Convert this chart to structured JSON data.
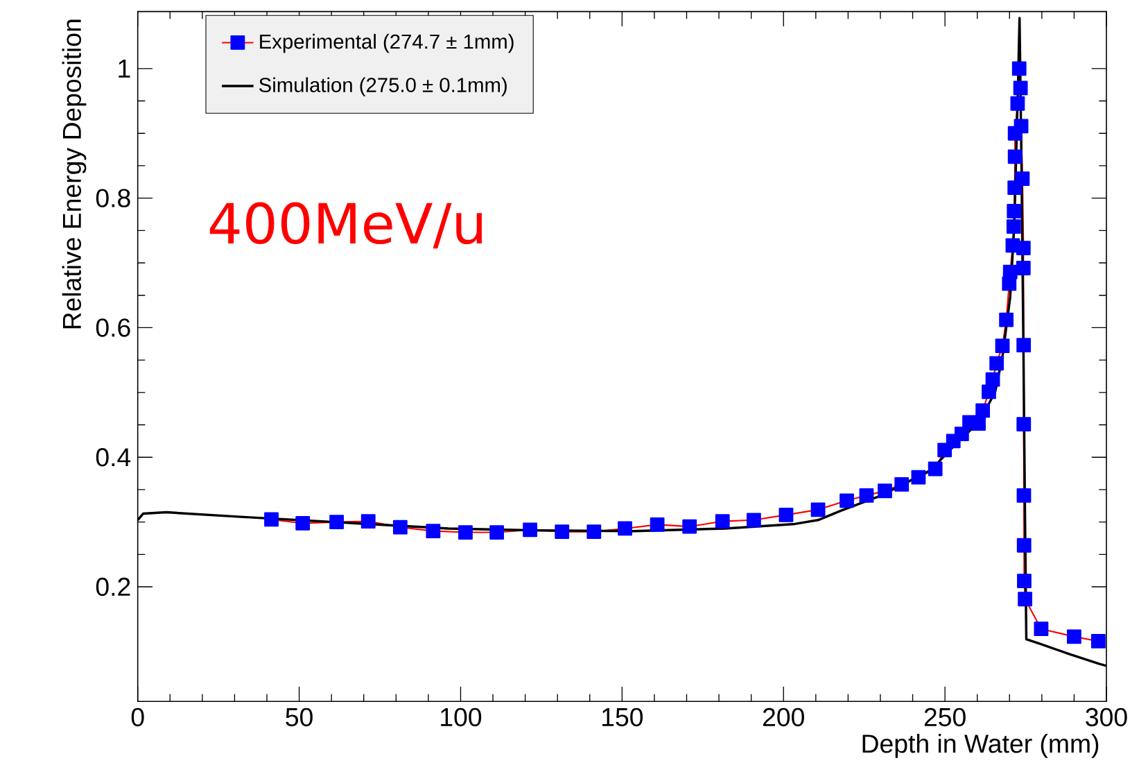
{
  "chart_data": {
    "type": "line",
    "xlabel": "Depth in Water (mm)",
    "ylabel": "Relative Energy Deposition",
    "annotations": [
      "400MeV/u"
    ],
    "xlim": [
      0,
      300
    ],
    "xticks": [
      0,
      50,
      100,
      150,
      200,
      250,
      300
    ],
    "ylim": [
      0.023,
      1.088
    ],
    "yticks": [
      0.2,
      0.4,
      0.6,
      0.8,
      1
    ],
    "grid": false,
    "legend": "top left",
    "series": [
      {
        "name": "Experimental (274.7 ± 1mm)",
        "color": "#0000ff",
        "marker": "square",
        "x": [
          41.4,
          51.1,
          61.6,
          71.4,
          81.3,
          91.5,
          101.5,
          111.2,
          121.5,
          131.4,
          141.3,
          150.9,
          160.9,
          170.9,
          181.1,
          190.8,
          200.8,
          210.7,
          219.6,
          225.7,
          231.4,
          236.6,
          241.8,
          247,
          249.9,
          252.6,
          255.2,
          257.6,
          260.4,
          261.7,
          263.6,
          264.8,
          266,
          267.8,
          269,
          269.9,
          270.2,
          271,
          271.3,
          271.4,
          271.6,
          271.7,
          271.7,
          272.5,
          273,
          273.4,
          273.6,
          274,
          274.3,
          274.3,
          274.38,
          274.4,
          274.45,
          274.5,
          274.55,
          274.8,
          279.8,
          290,
          297.5
        ],
        "values": [
          0.304,
          0.298,
          0.3,
          0.301,
          0.292,
          0.286,
          0.284,
          0.284,
          0.288,
          0.285,
          0.285,
          0.29,
          0.296,
          0.293,
          0.301,
          0.303,
          0.311,
          0.319,
          0.333,
          0.341,
          0.348,
          0.358,
          0.369,
          0.382,
          0.411,
          0.425,
          0.436,
          0.454,
          0.452,
          0.472,
          0.501,
          0.52,
          0.545,
          0.572,
          0.612,
          0.668,
          0.686,
          0.727,
          0.756,
          0.78,
          0.816,
          0.864,
          0.9,
          0.946,
          1.0,
          0.97,
          0.911,
          0.83,
          0.723,
          0.692,
          0.573,
          0.451,
          0.341,
          0.264,
          0.209,
          0.181,
          0.135,
          0.123,
          0.116
        ]
      },
      {
        "name": "Simulation (275.0 ± 0.1mm)",
        "color": "#000000",
        "marker": "none",
        "x": [
          0,
          1.7,
          8.9,
          31.8,
          67.6,
          96.2,
          124.8,
          153.5,
          182,
          203.5,
          210.7,
          218,
          230.3,
          245.6,
          252.9,
          261,
          265.6,
          267.8,
          270.2,
          271.5,
          272.1,
          272.7,
          273.1,
          273.7,
          274.3,
          274.8,
          275.2,
          279.4,
          288.6,
          297.8,
          300
        ],
        "values": [
          0.303,
          0.313,
          0.315,
          0.308,
          0.298,
          0.29,
          0.287,
          0.286,
          0.29,
          0.297,
          0.303,
          0.318,
          0.341,
          0.38,
          0.418,
          0.457,
          0.502,
          0.555,
          0.647,
          0.761,
          0.876,
          0.99,
          1.078,
          0.853,
          0.57,
          0.303,
          0.119,
          0.112,
          0.096,
          0.081,
          0.078
        ]
      }
    ]
  }
}
